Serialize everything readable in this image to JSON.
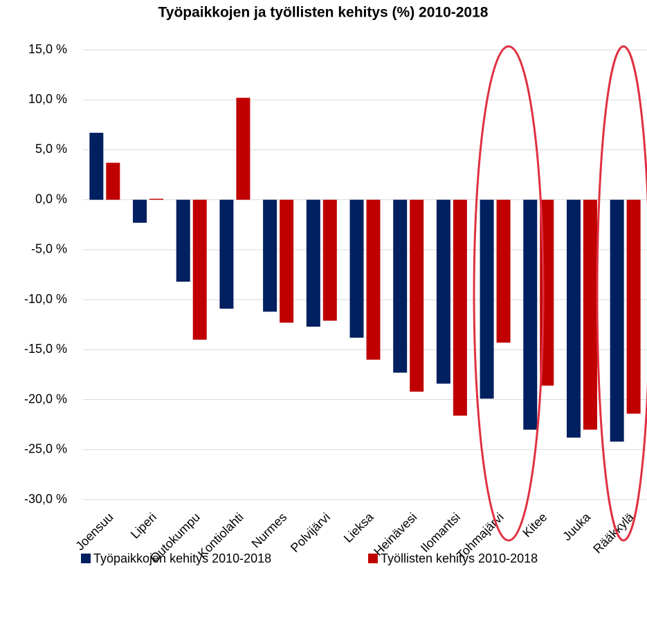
{
  "chart_data": {
    "type": "bar",
    "title": "Työpaikkojen ja työllisten kehitys (%) 2010-2018",
    "categories": [
      "Joensuu",
      "Liperi",
      "Outokumpu",
      "Kontiolahti",
      "Nurmes",
      "Polvijärvi",
      "Lieksa",
      "Heinävesi",
      "Ilomantsi",
      "Tohmajärvi",
      "Kitee",
      "Juuka",
      "Rääkkylä"
    ],
    "series": [
      {
        "name": "Työpaikkojen kehitys 2010-2018",
        "color": "#002060",
        "values": [
          6.7,
          -2.3,
          -8.2,
          -10.9,
          -11.2,
          -12.7,
          -13.8,
          -17.3,
          -18.4,
          -19.9,
          -23.0,
          -23.8,
          -24.2
        ]
      },
      {
        "name": "Työllisten kehitys 2010-2018",
        "color": "#c00000",
        "values": [
          3.7,
          0.1,
          -14.0,
          10.2,
          -12.3,
          -12.1,
          -16.0,
          -19.2,
          -21.6,
          -14.3,
          -18.6,
          -23.0,
          -21.4
        ]
      }
    ],
    "ylim": [
      -30,
      15
    ],
    "yticks": [
      {
        "value": 15,
        "label": "15,0 %"
      },
      {
        "value": 10,
        "label": "10,0 %"
      },
      {
        "value": 5,
        "label": "5,0 %"
      },
      {
        "value": 0,
        "label": "0,0 %"
      },
      {
        "value": -5,
        "label": "-5,0 %"
      },
      {
        "value": -10,
        "label": "-10,0 %"
      },
      {
        "value": -15,
        "label": "-15,0 %"
      },
      {
        "value": -20,
        "label": "-20,0 %"
      },
      {
        "value": -25,
        "label": "-25,0 %"
      },
      {
        "value": -30,
        "label": "-30,0 %"
      }
    ],
    "grid": true,
    "legend": "bottom"
  }
}
